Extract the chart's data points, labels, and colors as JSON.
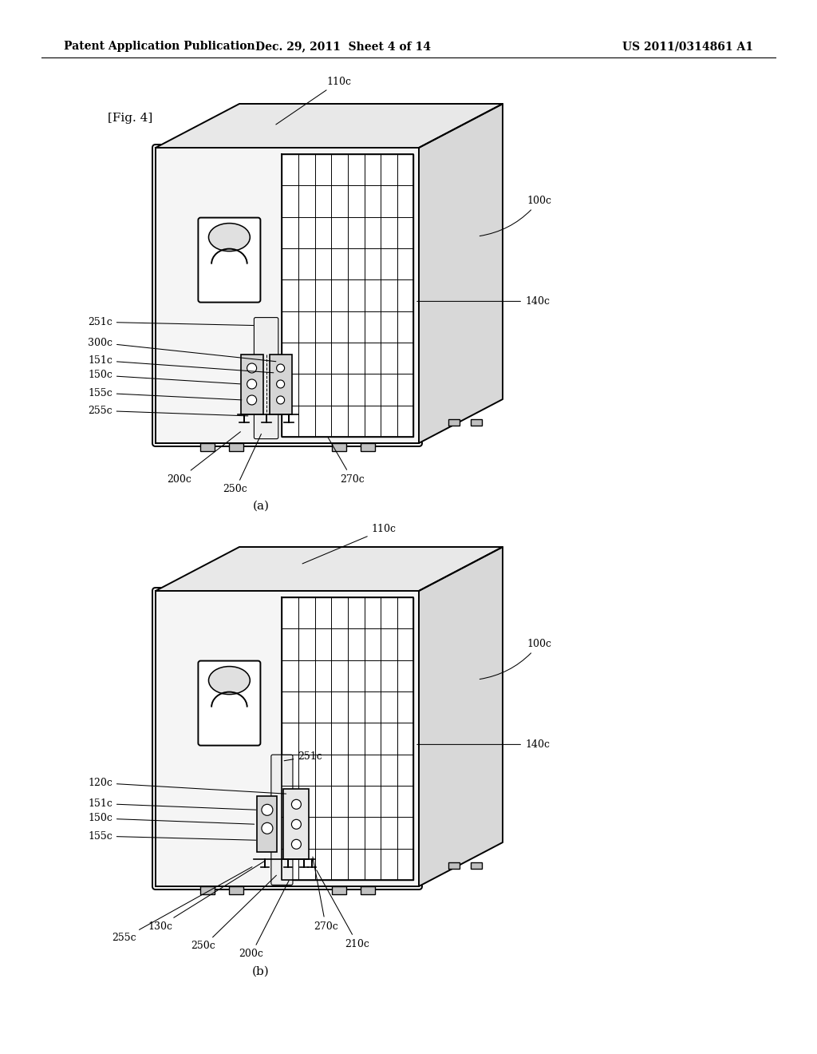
{
  "background_color": "#ffffff",
  "header_left": "Patent Application Publication",
  "header_center": "Dec. 29, 2011  Sheet 4 of 14",
  "header_right": "US 2011/0314861 A1",
  "fig_label": "[Fig. 4]",
  "diagram_a_label": "(a)",
  "diagram_b_label": "(b)",
  "lw_main": 1.4,
  "lw_grid": 0.7,
  "lw_thin": 0.8,
  "font_size_header": 10,
  "font_size_label": 9,
  "font_size_fig": 11,
  "font_size_caption": 11
}
